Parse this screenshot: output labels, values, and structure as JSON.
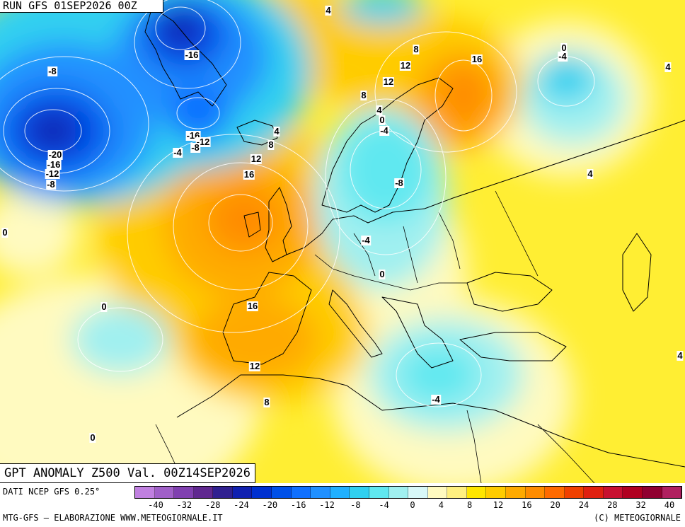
{
  "header": {
    "run_label": "RUN GFS 01SEP2026 00Z"
  },
  "product": {
    "title": "GPT ANOMALY Z500 Val. 00Z14SEP2026"
  },
  "footer": {
    "data_source": "DATI NCEP GFS 0.25°",
    "credit_left": "MTG-GFS – ELABORAZIONE WWW.METEOGIORNALE.IT",
    "credit_right": "(C) METEOGIORNALE"
  },
  "colors": {
    "ocean_base": "#fff9b0",
    "land_base": "#ffee33",
    "coastline": "#000000",
    "isoline": "#ffffff"
  },
  "colorbar": {
    "colors": [
      "#c080e0",
      "#a060c8",
      "#8040b0",
      "#602890",
      "#302090",
      "#1020b0",
      "#0030d0",
      "#0050e8",
      "#1070ff",
      "#2090ff",
      "#20b0ff",
      "#30d0f0",
      "#60e8f0",
      "#a0f0f0",
      "#d8f8f8",
      "#fffac0",
      "#fff080",
      "#ffe600",
      "#ffcc00",
      "#ffaa00",
      "#ff8c00",
      "#ff6a00",
      "#f04000",
      "#e02010",
      "#c81030",
      "#b00020",
      "#900030",
      "#b02060"
    ],
    "tick_labels": [
      "-40",
      "-32",
      "-28",
      "-24",
      "-20",
      "-16",
      "-12",
      "-8",
      "-4",
      "0",
      "4",
      "8",
      "12",
      "16",
      "20",
      "24",
      "28",
      "32",
      "40"
    ]
  },
  "isoline_labels": [
    {
      "text": "4"
    },
    {
      "text": "-8"
    },
    {
      "text": "-16"
    },
    {
      "text": "8"
    },
    {
      "text": "12"
    },
    {
      "text": "16"
    },
    {
      "text": "0"
    },
    {
      "text": "-4"
    },
    {
      "text": "4"
    },
    {
      "text": "12"
    },
    {
      "text": "8"
    },
    {
      "text": "4"
    },
    {
      "text": "0"
    },
    {
      "text": "-4"
    },
    {
      "text": "-16"
    },
    {
      "text": "-12"
    },
    {
      "text": "-8"
    },
    {
      "text": "-4"
    },
    {
      "text": "4"
    },
    {
      "text": "8"
    },
    {
      "text": "-20"
    },
    {
      "text": "-16"
    },
    {
      "text": "-12"
    },
    {
      "text": "-8"
    },
    {
      "text": "12"
    },
    {
      "text": "16"
    },
    {
      "text": "-8"
    },
    {
      "text": "4"
    },
    {
      "text": "0"
    },
    {
      "text": "-4"
    },
    {
      "text": "0"
    },
    {
      "text": "0"
    },
    {
      "text": "16"
    },
    {
      "text": "4"
    },
    {
      "text": "12"
    },
    {
      "text": "8"
    },
    {
      "text": "-4"
    },
    {
      "text": "0"
    }
  ]
}
